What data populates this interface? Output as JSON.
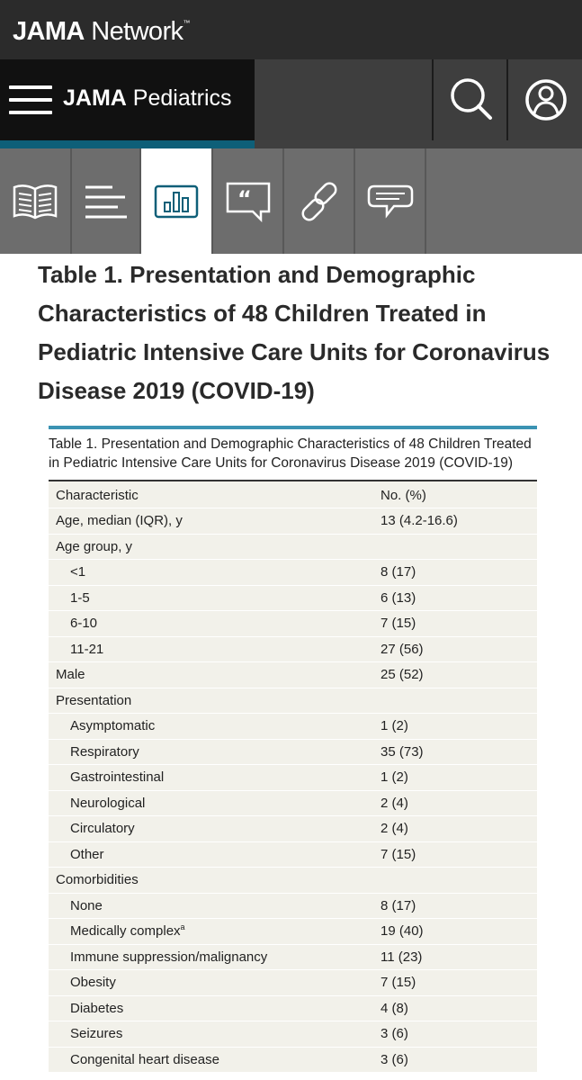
{
  "network": {
    "brand_bold": "JAMA",
    "brand_light": " Network",
    "trademark": "™"
  },
  "journal": {
    "brand_bold": "JAMA",
    "brand_light": " Pediatrics"
  },
  "icons": {
    "menu": "hamburger-menu-icon",
    "search": "search-icon",
    "account": "user-account-icon",
    "tabs": [
      "article-book-icon",
      "outline-list-icon",
      "figures-chart-icon",
      "cite-quote-icon",
      "link-icon",
      "comments-icon"
    ]
  },
  "colors": {
    "accent": "#0e5f78",
    "table_top_rule": "#3b93b3",
    "table_bg": "#f2f1ea"
  },
  "heading": "Table 1.  Presentation and Demographic Characteristics of 48 Children Treated in Pediatric Intensive Care Units for Coronavirus Disease 2019 (COVID-19)",
  "table": {
    "caption": "Table 1. Presentation and Demographic Characteristics of 48 Children Treated in Pediatric Intensive Care Units for Coronavirus Disease 2019 (COVID-19)",
    "columns": [
      "Characteristic",
      "No. (%)"
    ],
    "rows": [
      {
        "label": "Age, median (IQR), y",
        "value": "13 (4.2-16.6)",
        "indent": false
      },
      {
        "label": "Age group, y",
        "value": "",
        "indent": false
      },
      {
        "label": "<1",
        "value": "8 (17)",
        "indent": true
      },
      {
        "label": "1-5",
        "value": "6 (13)",
        "indent": true
      },
      {
        "label": "6-10",
        "value": "7 (15)",
        "indent": true
      },
      {
        "label": "11-21",
        "value": "27 (56)",
        "indent": true
      },
      {
        "label": "Male",
        "value": "25 (52)",
        "indent": false
      },
      {
        "label": "Presentation",
        "value": "",
        "indent": false
      },
      {
        "label": "Asymptomatic",
        "value": "1 (2)",
        "indent": true
      },
      {
        "label": "Respiratory",
        "value": "35 (73)",
        "indent": true
      },
      {
        "label": "Gastrointestinal",
        "value": "1 (2)",
        "indent": true
      },
      {
        "label": "Neurological",
        "value": "2 (4)",
        "indent": true
      },
      {
        "label": "Circulatory",
        "value": "2 (4)",
        "indent": true
      },
      {
        "label": "Other",
        "value": "7 (15)",
        "indent": true
      },
      {
        "label": "Comorbidities",
        "value": "",
        "indent": false
      },
      {
        "label": "None",
        "value": "8 (17)",
        "indent": true
      },
      {
        "label": "Medically complex",
        "sup": "a",
        "value": "19 (40)",
        "indent": true
      },
      {
        "label": "Immune suppression/malignancy",
        "value": "11 (23)",
        "indent": true
      },
      {
        "label": "Obesity",
        "value": "7 (15)",
        "indent": true
      },
      {
        "label": "Diabetes",
        "value": "4 (8)",
        "indent": true
      },
      {
        "label": "Seizures",
        "value": "3 (6)",
        "indent": true
      },
      {
        "label": "Congenital heart disease",
        "value": "3 (6)",
        "indent": true
      }
    ]
  }
}
